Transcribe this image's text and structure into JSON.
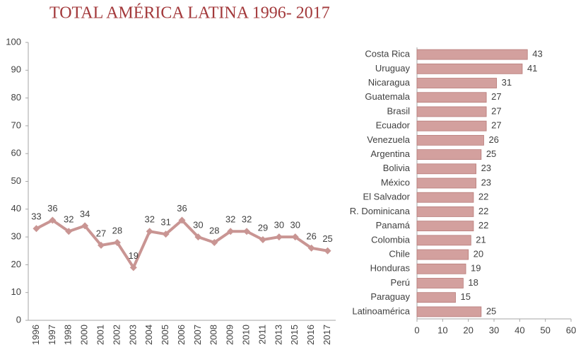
{
  "chart_data": [
    {
      "type": "line",
      "title": "TOTAL AMÉRICA LATINA 1996- 2017",
      "categories": [
        "1996",
        "1997",
        "1998",
        "2000",
        "2001",
        "2002",
        "2003",
        "2004",
        "2005",
        "2006",
        "2007",
        "2008",
        "2009",
        "2010",
        "2011",
        "2013",
        "2015",
        "2016",
        "2017"
      ],
      "values": [
        33,
        36,
        32,
        34,
        27,
        28,
        19,
        32,
        31,
        36,
        30,
        28,
        32,
        32,
        29,
        30,
        30,
        26,
        25
      ],
      "color": "#c99593",
      "ylim": [
        0,
        100
      ],
      "yticks": [
        0,
        10,
        20,
        30,
        40,
        50,
        60,
        70,
        80,
        90,
        100
      ]
    },
    {
      "type": "bar",
      "orientation": "horizontal",
      "categories": [
        "Costa Rica",
        "Uruguay",
        "Nicaragua",
        "Guatemala",
        "Brasil",
        "Ecuador",
        "Venezuela",
        "Argentina",
        "Bolivia",
        "México",
        "El Salvador",
        "R. Dominicana",
        "Panamá",
        "Colombia",
        "Chile",
        "Honduras",
        "Perú",
        "Paraguay",
        "Latinoamérica"
      ],
      "values": [
        43,
        41,
        31,
        27,
        27,
        27,
        26,
        25,
        23,
        23,
        22,
        22,
        22,
        21,
        20,
        19,
        18,
        15,
        25
      ],
      "color": "#d3a09e",
      "xlim": [
        0,
        60
      ],
      "xticks": [
        0,
        10,
        20,
        30,
        40,
        50,
        60
      ]
    }
  ]
}
